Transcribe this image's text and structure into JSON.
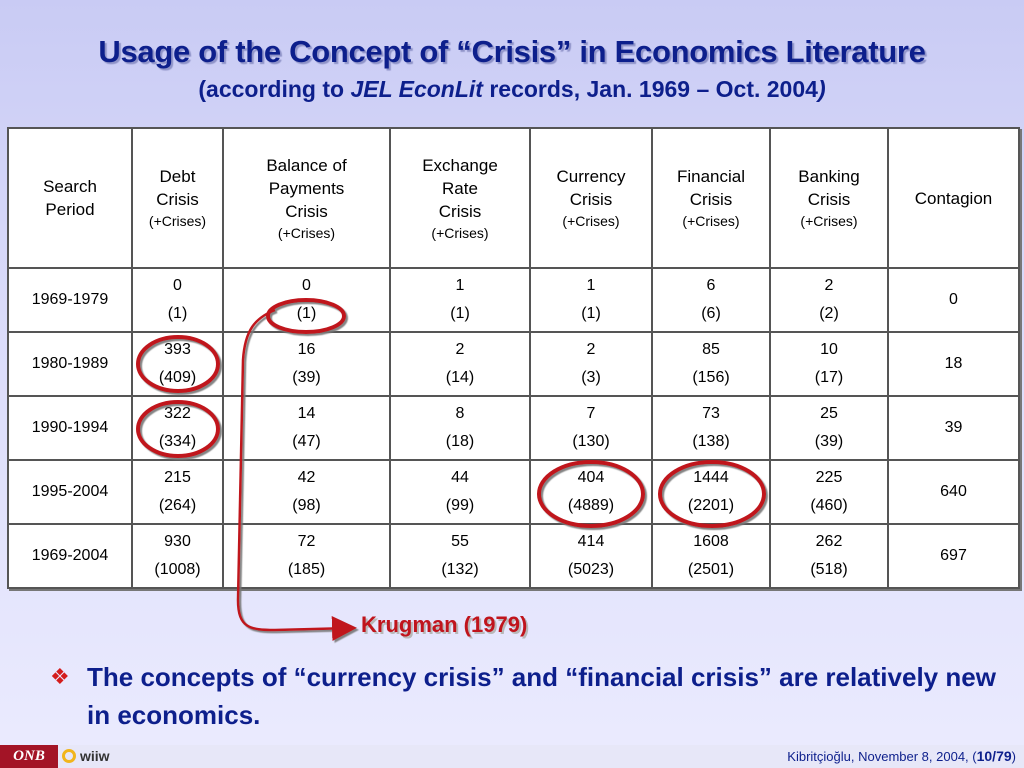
{
  "slide": {
    "title": "Usage of the Concept of “Crisis” in Economics Literature",
    "subtitle_pre": "(according to ",
    "subtitle_italic": "JEL EconLit",
    "subtitle_post": " records, Jan. 1969 – Oct. 2004",
    "subtitle_close": ")"
  },
  "table": {
    "headers": [
      {
        "line1": "Search",
        "line2": "Period",
        "line3": "",
        "small": ""
      },
      {
        "line1": "Debt",
        "line2": "Crisis",
        "line3": "",
        "small": "(+Crises)"
      },
      {
        "line1": "Balance of",
        "line2": "Payments",
        "line3": "Crisis",
        "small": "(+Crises)"
      },
      {
        "line1": "Exchange",
        "line2": "Rate",
        "line3": "Crisis",
        "small": "(+Crises)"
      },
      {
        "line1": "Currency",
        "line2": "Crisis",
        "line3": "",
        "small": "(+Crises)"
      },
      {
        "line1": "Financial",
        "line2": "Crisis",
        "line3": "",
        "small": "(+Crises)"
      },
      {
        "line1": "Banking",
        "line2": "Crisis",
        "line3": "",
        "small": "(+Crises)"
      },
      {
        "line1": "Contagion",
        "line2": "",
        "line3": "",
        "small": ""
      }
    ],
    "rows": [
      {
        "period": "1969-1979",
        "cells": [
          [
            "0",
            "(1)"
          ],
          [
            "0",
            "(1)"
          ],
          [
            "1",
            "(1)"
          ],
          [
            "1",
            "(1)"
          ],
          [
            "6",
            "(6)"
          ],
          [
            "2",
            "(2)"
          ]
        ],
        "contagion": "0"
      },
      {
        "period": "1980-1989",
        "cells": [
          [
            "393",
            "(409)"
          ],
          [
            "16",
            "(39)"
          ],
          [
            "2",
            "(14)"
          ],
          [
            "2",
            "(3)"
          ],
          [
            "85",
            "(156)"
          ],
          [
            "10",
            "(17)"
          ]
        ],
        "contagion": "18"
      },
      {
        "period": "1990-1994",
        "cells": [
          [
            "322",
            "(334)"
          ],
          [
            "14",
            "(47)"
          ],
          [
            "8",
            "(18)"
          ],
          [
            "7",
            "(130)"
          ],
          [
            "73",
            "(138)"
          ],
          [
            "25",
            "(39)"
          ]
        ],
        "contagion": "39"
      },
      {
        "period": "1995-2004",
        "cells": [
          [
            "215",
            "(264)"
          ],
          [
            "42",
            "(98)"
          ],
          [
            "44",
            "(99)"
          ],
          [
            "404",
            "(4889)"
          ],
          [
            "1444",
            "(2201)"
          ],
          [
            "225",
            "(460)"
          ]
        ],
        "contagion": "640"
      },
      {
        "period": "1969-2004",
        "cells": [
          [
            "930",
            "(1008)"
          ],
          [
            "72",
            "(185)"
          ],
          [
            "55",
            "(132)"
          ],
          [
            "414",
            "(5023)"
          ],
          [
            "1608",
            "(2501)"
          ],
          [
            "262",
            "(518)"
          ]
        ],
        "contagion": "697"
      }
    ]
  },
  "annotation": {
    "label": "Krugman (1979)",
    "color": "#c0141c"
  },
  "bullet": {
    "icon": "diamond-bullet-icon",
    "text": "The concepts of “currency crisis” and “financial crisis” are relatively new in economics."
  },
  "footer": {
    "logo_onb": "ONB",
    "logo_wiiw": "wiiw",
    "author_date": "Kibritçioğlu, November 8, 2004, (",
    "page": "10/79",
    "close": ")"
  }
}
